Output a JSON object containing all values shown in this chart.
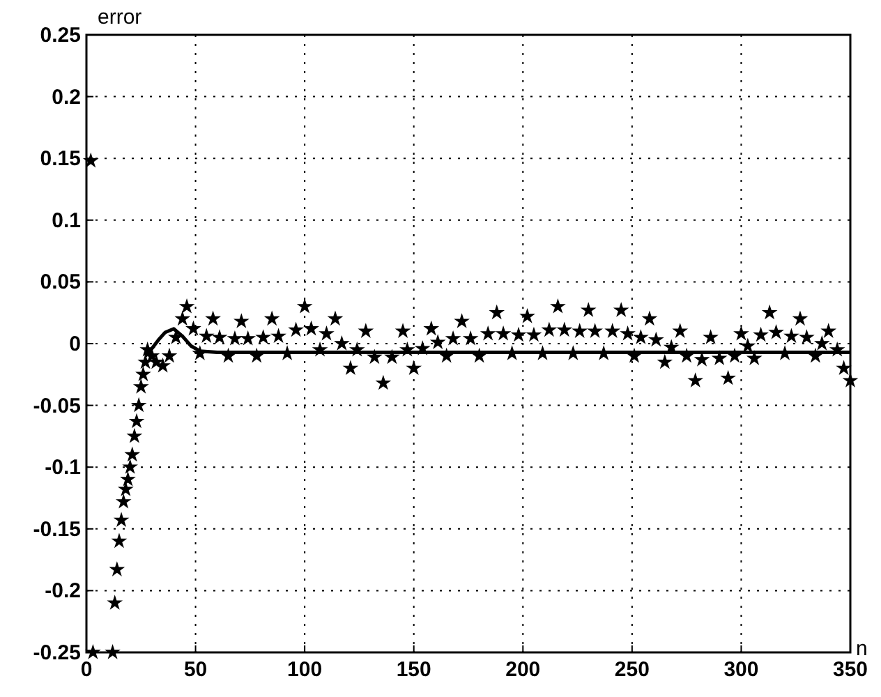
{
  "chart_data": {
    "type": "line",
    "xlabel": "n",
    "ylabel": "error",
    "xlim": [
      0,
      350
    ],
    "ylim": [
      -0.25,
      0.25
    ],
    "xticks": [
      0,
      50,
      100,
      150,
      200,
      250,
      300,
      350
    ],
    "yticks": [
      -0.25,
      -0.2,
      -0.15,
      -0.1,
      -0.05,
      0,
      0.05,
      0.1,
      0.15,
      0.2,
      0.25
    ],
    "grid": true,
    "series": [
      {
        "type": "scatter",
        "marker": "star",
        "color": "#000000",
        "x": [
          2,
          3,
          12,
          13,
          14,
          15,
          16,
          17,
          18,
          19,
          20,
          21,
          22,
          23,
          24,
          25,
          26,
          27,
          28,
          30,
          32,
          35,
          38,
          41,
          44,
          46,
          49,
          52,
          55,
          58,
          61,
          65,
          68,
          71,
          74,
          78,
          81,
          85,
          88,
          92,
          96,
          100,
          103,
          107,
          110,
          114,
          117,
          121,
          124,
          128,
          132,
          136,
          140,
          145,
          147,
          150,
          154,
          158,
          161,
          165,
          168,
          172,
          176,
          180,
          184,
          188,
          191,
          195,
          198,
          202,
          205,
          209,
          212,
          216,
          219,
          223,
          226,
          230,
          233,
          237,
          241,
          245,
          248,
          251,
          254,
          258,
          261,
          265,
          268,
          272,
          275,
          279,
          282,
          286,
          290,
          294,
          297,
          300,
          303,
          306,
          309,
          313,
          316,
          320,
          323,
          327,
          330,
          334,
          337,
          340,
          344,
          347,
          350
        ],
        "values": [
          0.148,
          -0.25,
          -0.25,
          -0.21,
          -0.183,
          -0.16,
          -0.143,
          -0.128,
          -0.118,
          -0.11,
          -0.1,
          -0.09,
          -0.075,
          -0.063,
          -0.05,
          -0.035,
          -0.025,
          -0.015,
          -0.005,
          -0.01,
          -0.015,
          -0.018,
          -0.01,
          0.005,
          0.02,
          0.03,
          0.012,
          -0.008,
          0.006,
          0.02,
          0.005,
          -0.01,
          0.004,
          0.018,
          0.004,
          -0.01,
          0.005,
          0.02,
          0.006,
          -0.008,
          0.011,
          0.03,
          0.012,
          -0.005,
          0.008,
          0.02,
          0,
          -0.02,
          -0.005,
          0.01,
          -0.011,
          -0.032,
          -0.011,
          0.01,
          -0.005,
          -0.02,
          -0.004,
          0.012,
          0.001,
          -0.01,
          0.004,
          0.018,
          0.004,
          -0.01,
          0.008,
          0.025,
          0.008,
          -0.008,
          0.007,
          0.022,
          0.007,
          -0.008,
          0.011,
          0.03,
          0.011,
          -0.008,
          0.01,
          0.027,
          0.01,
          -0.008,
          0.01,
          0.027,
          0.008,
          -0.01,
          0.005,
          0.02,
          0.003,
          -0.015,
          -0.003,
          0.01,
          -0.01,
          -0.03,
          -0.013,
          0.005,
          -0.012,
          -0.028,
          -0.01,
          0.008,
          -0.002,
          -0.012,
          0.007,
          0.025,
          0.009,
          -0.008,
          0.006,
          0.02,
          0.005,
          -0.01,
          0,
          0.01,
          -0.005,
          -0.02,
          -0.03
        ]
      },
      {
        "marker": "none",
        "line_style": "solid",
        "color": "#000000",
        "x": [
          27,
          30,
          33,
          36,
          40,
          44,
          48,
          52,
          60,
          350
        ],
        "values": [
          -0.01,
          -0.004,
          0.003,
          0.009,
          0.012,
          0.006,
          -0.002,
          -0.006,
          -0.007,
          -0.007
        ]
      }
    ]
  }
}
